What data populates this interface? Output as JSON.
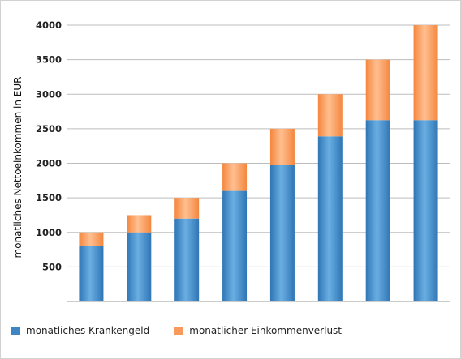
{
  "chart_data": {
    "type": "bar",
    "stacked": true,
    "ylabel": "monatliches Nettoeinkommen in EUR",
    "ylim": [
      0,
      4000
    ],
    "yticks": [
      500,
      1000,
      1500,
      2000,
      2500,
      3000,
      3500,
      4000
    ],
    "grid": true,
    "legend_position": "bottom-left",
    "categories": [
      "",
      "",
      "",
      "",
      "",
      "",
      "",
      ""
    ],
    "series": [
      {
        "name": "monatliches Krankengeld",
        "color": "#3f85c3",
        "values": [
          800,
          1000,
          1200,
          1600,
          1980,
          2390,
          2625,
          2625
        ]
      },
      {
        "name": "monatlicher Einkommenverlust",
        "color": "#f79a5c",
        "values": [
          200,
          250,
          300,
          400,
          520,
          610,
          875,
          1375
        ]
      }
    ]
  }
}
